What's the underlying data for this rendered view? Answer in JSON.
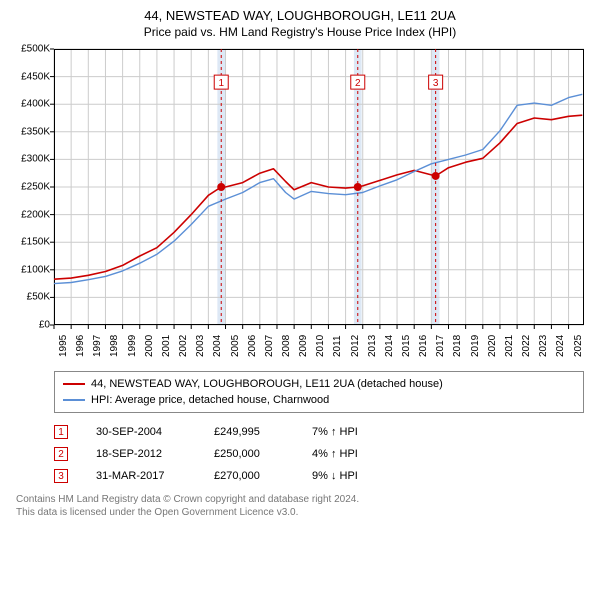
{
  "title": {
    "line1": "44, NEWSTEAD WAY, LOUGHBOROUGH, LE11 2UA",
    "line2": "Price paid vs. HM Land Registry's House Price Index (HPI)"
  },
  "chart": {
    "type": "line",
    "background_color": "#ffffff",
    "grid_color": "#cccccc",
    "axis_color": "#000000",
    "plot_border": true,
    "x": {
      "min": 1995,
      "max": 2025.9,
      "ticks": [
        1995,
        1996,
        1997,
        1998,
        1999,
        2000,
        2001,
        2002,
        2003,
        2004,
        2005,
        2006,
        2007,
        2008,
        2009,
        2010,
        2011,
        2012,
        2013,
        2014,
        2015,
        2016,
        2017,
        2018,
        2019,
        2020,
        2021,
        2022,
        2023,
        2024,
        2025
      ],
      "tick_fontsize": 10
    },
    "y": {
      "min": 0,
      "max": 500000,
      "ticks": [
        0,
        50000,
        100000,
        150000,
        200000,
        250000,
        300000,
        350000,
        400000,
        450000,
        500000
      ],
      "tick_labels": [
        "£0",
        "£50K",
        "£100K",
        "£150K",
        "£200K",
        "£250K",
        "£300K",
        "£350K",
        "£400K",
        "£450K",
        "£500K"
      ],
      "tick_fontsize": 10
    },
    "vbands": [
      {
        "x": 2004.75,
        "color": "#dde8f5"
      },
      {
        "x": 2012.71,
        "color": "#dde8f5"
      },
      {
        "x": 2017.25,
        "color": "#dde8f5"
      }
    ],
    "vband_width_years": 0.45,
    "markers": [
      {
        "n": "1",
        "x": 2004.75,
        "y": 249995,
        "box_y": 440000
      },
      {
        "n": "2",
        "x": 2012.71,
        "y": 250000,
        "box_y": 440000
      },
      {
        "n": "3",
        "x": 2017.25,
        "y": 270000,
        "box_y": 440000
      }
    ],
    "marker_style": {
      "dot_radius": 4,
      "dot_fill": "#cc0000",
      "dashed_line_color": "#cc0000",
      "dash": "3,3",
      "box_stroke": "#cc0000",
      "box_text_color": "#cc0000",
      "box_size": 14,
      "box_fontsize": 10
    },
    "series": [
      {
        "name": "property",
        "color": "#cc0000",
        "width": 1.6,
        "points": [
          [
            1995,
            83000
          ],
          [
            1996,
            85000
          ],
          [
            1997,
            90000
          ],
          [
            1998,
            97000
          ],
          [
            1999,
            108000
          ],
          [
            2000,
            125000
          ],
          [
            2001,
            140000
          ],
          [
            2002,
            168000
          ],
          [
            2003,
            200000
          ],
          [
            2004,
            235000
          ],
          [
            2004.75,
            249995
          ],
          [
            2005,
            250000
          ],
          [
            2006,
            258000
          ],
          [
            2007,
            275000
          ],
          [
            2007.8,
            283000
          ],
          [
            2008.5,
            260000
          ],
          [
            2009,
            245000
          ],
          [
            2010,
            258000
          ],
          [
            2011,
            250000
          ],
          [
            2012,
            248000
          ],
          [
            2012.71,
            250000
          ],
          [
            2013,
            252000
          ],
          [
            2014,
            262000
          ],
          [
            2015,
            272000
          ],
          [
            2016,
            280000
          ],
          [
            2017.25,
            270000
          ],
          [
            2018,
            285000
          ],
          [
            2019,
            295000
          ],
          [
            2020,
            302000
          ],
          [
            2021,
            330000
          ],
          [
            2022,
            365000
          ],
          [
            2023,
            375000
          ],
          [
            2024,
            372000
          ],
          [
            2025,
            378000
          ],
          [
            2025.8,
            380000
          ]
        ]
      },
      {
        "name": "hpi",
        "color": "#5b8fd6",
        "width": 1.4,
        "points": [
          [
            1995,
            75000
          ],
          [
            1996,
            77000
          ],
          [
            1997,
            82000
          ],
          [
            1998,
            88000
          ],
          [
            1999,
            98000
          ],
          [
            2000,
            112000
          ],
          [
            2001,
            128000
          ],
          [
            2002,
            152000
          ],
          [
            2003,
            182000
          ],
          [
            2004,
            215000
          ],
          [
            2005,
            228000
          ],
          [
            2006,
            240000
          ],
          [
            2007,
            258000
          ],
          [
            2007.8,
            265000
          ],
          [
            2008.5,
            240000
          ],
          [
            2009,
            228000
          ],
          [
            2010,
            242000
          ],
          [
            2011,
            238000
          ],
          [
            2012,
            236000
          ],
          [
            2013,
            240000
          ],
          [
            2014,
            252000
          ],
          [
            2015,
            263000
          ],
          [
            2016,
            278000
          ],
          [
            2017,
            292000
          ],
          [
            2018,
            300000
          ],
          [
            2019,
            308000
          ],
          [
            2020,
            318000
          ],
          [
            2021,
            352000
          ],
          [
            2022,
            398000
          ],
          [
            2023,
            402000
          ],
          [
            2024,
            398000
          ],
          [
            2025,
            412000
          ],
          [
            2025.8,
            418000
          ]
        ]
      }
    ]
  },
  "legend": {
    "items": [
      {
        "color": "#cc0000",
        "label": "44, NEWSTEAD WAY, LOUGHBOROUGH, LE11 2UA (detached house)"
      },
      {
        "color": "#5b8fd6",
        "label": "HPI: Average price, detached house, Charnwood"
      }
    ]
  },
  "transactions": [
    {
      "n": "1",
      "date": "30-SEP-2004",
      "price": "£249,995",
      "diff": "7% ↑ HPI"
    },
    {
      "n": "2",
      "date": "18-SEP-2012",
      "price": "£250,000",
      "diff": "4% ↑ HPI"
    },
    {
      "n": "3",
      "date": "31-MAR-2017",
      "price": "£270,000",
      "diff": "9% ↓ HPI"
    }
  ],
  "footer": {
    "line1": "Contains HM Land Registry data © Crown copyright and database right 2024.",
    "line2": "This data is licensed under the Open Government Licence v3.0."
  }
}
